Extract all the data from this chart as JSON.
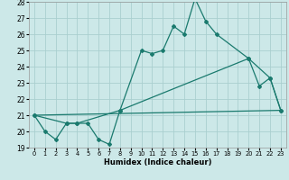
{
  "xlabel": "Humidex (Indice chaleur)",
  "curve1_x": [
    0,
    1,
    2,
    3,
    4,
    5,
    6,
    7,
    8,
    10,
    11,
    12,
    13,
    14,
    15,
    16,
    17,
    20,
    21,
    22,
    23
  ],
  "curve1_y": [
    21.0,
    20.0,
    19.5,
    20.5,
    20.5,
    20.5,
    19.5,
    19.2,
    21.3,
    25.0,
    24.8,
    25.0,
    26.5,
    26.0,
    28.2,
    26.8,
    26.0,
    24.5,
    22.8,
    23.3,
    21.3
  ],
  "curve2_x": [
    0,
    3,
    4,
    8,
    20,
    22,
    23
  ],
  "curve2_y": [
    21.0,
    20.5,
    20.5,
    21.3,
    24.5,
    23.3,
    21.3
  ],
  "curve3_x": [
    0,
    23
  ],
  "curve3_y": [
    21.0,
    21.3
  ],
  "ylim": [
    19,
    28
  ],
  "xlim": [
    -0.5,
    23.5
  ],
  "yticks": [
    19,
    20,
    21,
    22,
    23,
    24,
    25,
    26,
    27,
    28
  ],
  "xticks": [
    0,
    1,
    2,
    3,
    4,
    5,
    6,
    7,
    8,
    9,
    10,
    11,
    12,
    13,
    14,
    15,
    16,
    17,
    18,
    19,
    20,
    21,
    22,
    23
  ],
  "line_color": "#1a7a6e",
  "bg_color": "#cce8e8",
  "grid_color": "#aacfcf"
}
